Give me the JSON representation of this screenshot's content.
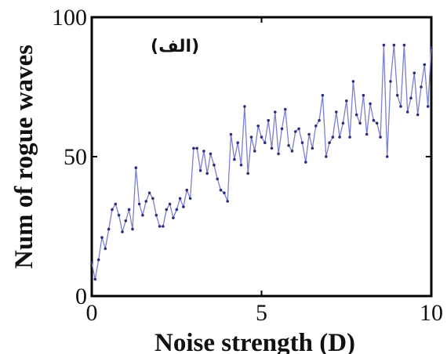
{
  "chart_data": {
    "type": "line",
    "xlabel": "Noise strength (D)",
    "ylabel": "Num of rogue waves",
    "panel_label": "(الف)",
    "xlim": [
      0,
      10
    ],
    "ylim": [
      0,
      100
    ],
    "xticks": [
      0,
      5,
      10
    ],
    "yticks": [
      0,
      50,
      100
    ],
    "grid": false,
    "line_color": "#7b7fd0",
    "marker_color": "#2e2f7a",
    "series": [
      {
        "x": [
          0.0,
          0.1,
          0.2,
          0.3,
          0.4,
          0.5,
          0.6,
          0.7,
          0.8,
          0.9,
          1.0,
          1.1,
          1.2,
          1.3,
          1.4,
          1.5,
          1.6,
          1.7,
          1.8,
          1.9,
          2.0,
          2.1,
          2.2,
          2.3,
          2.4,
          2.5,
          2.6,
          2.7,
          2.8,
          2.9,
          3.0,
          3.1,
          3.2,
          3.3,
          3.4,
          3.5,
          3.6,
          3.7,
          3.8,
          3.9,
          4.0,
          4.1,
          4.2,
          4.3,
          4.4,
          4.5,
          4.6,
          4.7,
          4.8,
          4.9,
          5.0,
          5.1,
          5.2,
          5.3,
          5.4,
          5.5,
          5.6,
          5.7,
          5.8,
          5.9,
          6.0,
          6.1,
          6.2,
          6.3,
          6.4,
          6.5,
          6.6,
          6.7,
          6.8,
          6.9,
          7.0,
          7.1,
          7.2,
          7.3,
          7.4,
          7.5,
          7.6,
          7.7,
          7.8,
          7.9,
          8.0,
          8.1,
          8.2,
          8.3,
          8.4,
          8.5,
          8.6,
          8.7,
          8.8,
          8.9,
          9.0,
          9.1,
          9.2,
          9.3,
          9.4,
          9.5,
          9.6,
          9.7,
          9.8,
          9.9,
          10.0
        ],
        "values": [
          12,
          6,
          13,
          21,
          17,
          24,
          31,
          33,
          29,
          23,
          27,
          31,
          24,
          46,
          33,
          29,
          34,
          37,
          35,
          29,
          25,
          25,
          31,
          33,
          28,
          31,
          35,
          32,
          38,
          35,
          53,
          53,
          45,
          52,
          44,
          51,
          47,
          42,
          38,
          37,
          34,
          58,
          49,
          55,
          47,
          68,
          44,
          57,
          52,
          61,
          57,
          55,
          63,
          53,
          66,
          51,
          60,
          67,
          54,
          52,
          59,
          60,
          55,
          48,
          58,
          53,
          61,
          63,
          72,
          50,
          55,
          57,
          66,
          57,
          62,
          70,
          57,
          77,
          65,
          62,
          72,
          58,
          69,
          63,
          62,
          57,
          90,
          50,
          77,
          90,
          72,
          68,
          90,
          66,
          71,
          80,
          65,
          75,
          83,
          68,
          89
        ]
      }
    ]
  }
}
